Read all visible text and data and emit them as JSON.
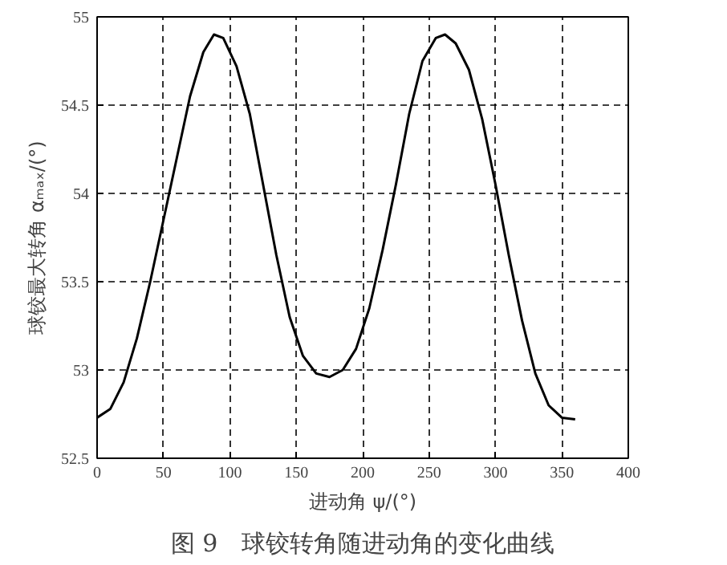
{
  "chart_data": {
    "type": "line",
    "xlabel": "进动角 ψ/(°)",
    "ylabel": "球铰最大转角 αₘₐₓ/(°)",
    "annotations": [
      "图 9　球铰转角随进动角的变化曲线"
    ],
    "x": [
      0,
      10,
      20,
      30,
      40,
      50,
      60,
      70,
      80,
      88,
      95,
      105,
      115,
      125,
      135,
      145,
      155,
      165,
      175,
      185,
      195,
      205,
      215,
      225,
      235,
      245,
      255,
      262,
      270,
      280,
      290,
      300,
      310,
      320,
      330,
      340,
      350,
      360
    ],
    "series": [
      {
        "color": "#000000",
        "values": [
          52.73,
          52.78,
          52.93,
          53.18,
          53.5,
          53.85,
          54.2,
          54.55,
          54.8,
          54.9,
          54.88,
          54.72,
          54.45,
          54.05,
          53.65,
          53.3,
          53.08,
          52.98,
          52.96,
          53.0,
          53.12,
          53.35,
          53.68,
          54.05,
          54.45,
          54.75,
          54.88,
          54.9,
          54.85,
          54.7,
          54.42,
          54.05,
          53.65,
          53.28,
          52.98,
          52.8,
          52.73,
          52.72
        ]
      }
    ],
    "xlim": [
      0,
      400
    ],
    "xticks": [
      0,
      50,
      100,
      150,
      200,
      250,
      300,
      350,
      400
    ],
    "ylim": [
      52.5,
      55
    ],
    "yticks": [
      52.5,
      53,
      53.5,
      54,
      54.5,
      55
    ],
    "grid": true,
    "line_style": "solid",
    "marker": "none"
  }
}
